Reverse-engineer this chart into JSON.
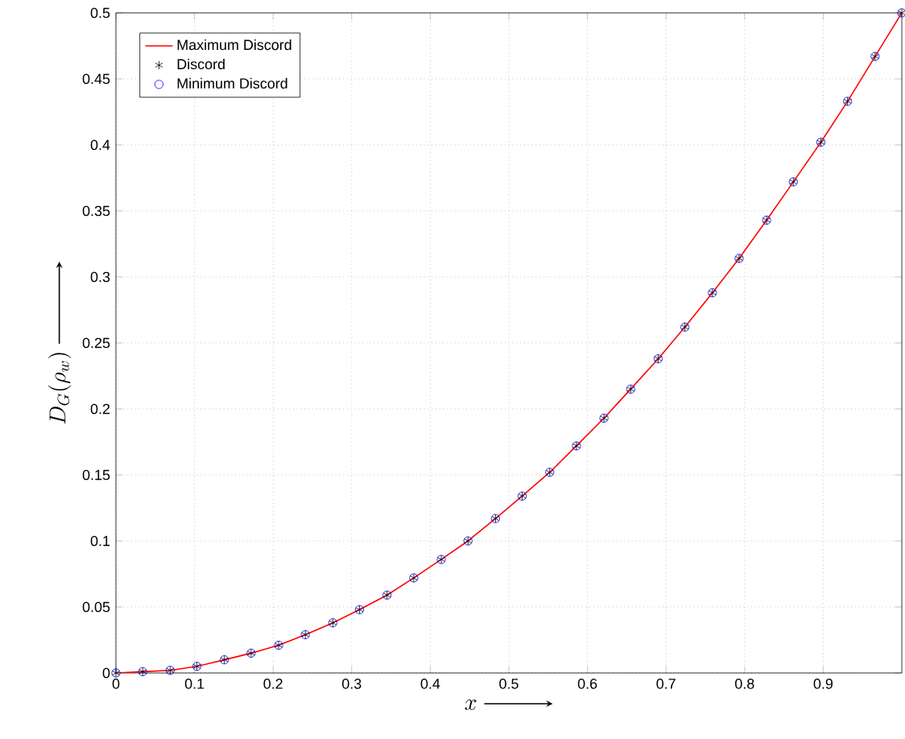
{
  "chart_data": {
    "type": "line",
    "xlabel": "x",
    "ylabel": "D_G(\\rho_w)",
    "x": [
      0,
      0.034,
      0.069,
      0.103,
      0.138,
      0.172,
      0.207,
      0.241,
      0.276,
      0.31,
      0.345,
      0.379,
      0.414,
      0.448,
      0.483,
      0.517,
      0.552,
      0.586,
      0.621,
      0.655,
      0.69,
      0.724,
      0.759,
      0.793,
      0.828,
      0.862,
      0.897,
      0.931,
      0.966,
      1
    ],
    "series": [
      {
        "name": "Maximum Discord",
        "marker": "none",
        "color": "#ff0000",
        "values": [
          0,
          0.001,
          0.002,
          0.005,
          0.01,
          0.015,
          0.021,
          0.029,
          0.038,
          0.048,
          0.059,
          0.072,
          0.086,
          0.1,
          0.117,
          0.134,
          0.152,
          0.172,
          0.193,
          0.215,
          0.238,
          0.262,
          0.288,
          0.314,
          0.343,
          0.372,
          0.402,
          0.433,
          0.467,
          0.5
        ]
      },
      {
        "name": "Discord",
        "type": "scatter",
        "marker": "cross",
        "color": "#000000",
        "values": [
          0,
          0.001,
          0.002,
          0.005,
          0.01,
          0.015,
          0.021,
          0.029,
          0.038,
          0.048,
          0.059,
          0.072,
          0.086,
          0.1,
          0.117,
          0.134,
          0.152,
          0.172,
          0.193,
          0.215,
          0.238,
          0.262,
          0.288,
          0.314,
          0.343,
          0.372,
          0.402,
          0.433,
          0.467,
          0.5
        ]
      },
      {
        "name": "Minimum Discord",
        "type": "scatter",
        "marker": "circle",
        "color": "#0000ff",
        "values": [
          0,
          0.001,
          0.002,
          0.005,
          0.01,
          0.015,
          0.021,
          0.029,
          0.038,
          0.048,
          0.059,
          0.072,
          0.086,
          0.1,
          0.117,
          0.134,
          0.152,
          0.172,
          0.193,
          0.215,
          0.238,
          0.262,
          0.288,
          0.314,
          0.343,
          0.372,
          0.402,
          0.433,
          0.467,
          0.5
        ]
      }
    ],
    "xlim": [
      0,
      1
    ],
    "xticks": [
      0,
      0.1,
      0.2,
      0.3,
      0.4,
      0.5,
      0.6,
      0.7,
      0.8,
      0.9
    ],
    "ylim": [
      0,
      0.5
    ],
    "yticks": [
      0,
      0.05,
      0.1,
      0.15,
      0.2,
      0.25,
      0.3,
      0.35,
      0.4,
      0.45,
      0.5
    ],
    "grid": true,
    "legend": "top left"
  }
}
